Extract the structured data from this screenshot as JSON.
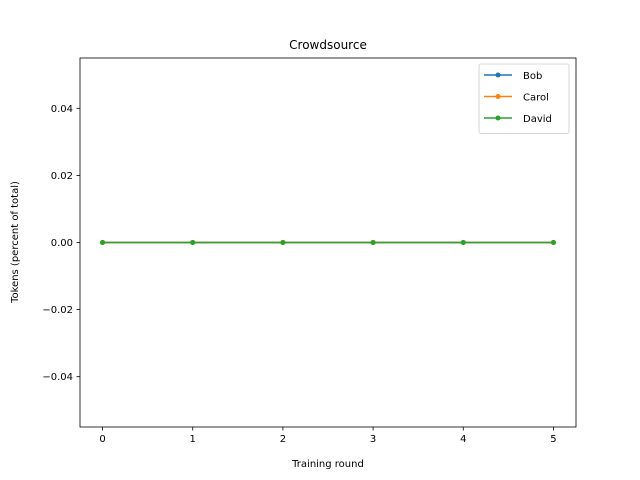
{
  "chart_data": {
    "type": "line",
    "title": "Crowdsource",
    "xlabel": "Training round",
    "ylabel": "Tokens (percent of total)",
    "x": [
      0,
      1,
      2,
      3,
      4,
      5
    ],
    "xlim": [
      -0.25,
      5.25
    ],
    "ylim": [
      -0.055,
      0.055
    ],
    "xticks": [
      0,
      1,
      2,
      3,
      4,
      5
    ],
    "xtick_labels": [
      "0",
      "1",
      "2",
      "3",
      "4",
      "5"
    ],
    "yticks": [
      -0.04,
      -0.02,
      0.0,
      0.02,
      0.04
    ],
    "ytick_labels": [
      "−0.04",
      "−0.02",
      "0.00",
      "0.02",
      "0.04"
    ],
    "grid": false,
    "legend_position": "top-right",
    "series": [
      {
        "name": "Bob",
        "color": "#1f77b4",
        "values": [
          0,
          0,
          0,
          0,
          0,
          0
        ]
      },
      {
        "name": "Carol",
        "color": "#ff7f0e",
        "values": [
          0,
          0,
          0,
          0,
          0,
          0
        ]
      },
      {
        "name": "David",
        "color": "#2ca02c",
        "values": [
          0,
          0,
          0,
          0,
          0,
          0
        ]
      }
    ]
  }
}
